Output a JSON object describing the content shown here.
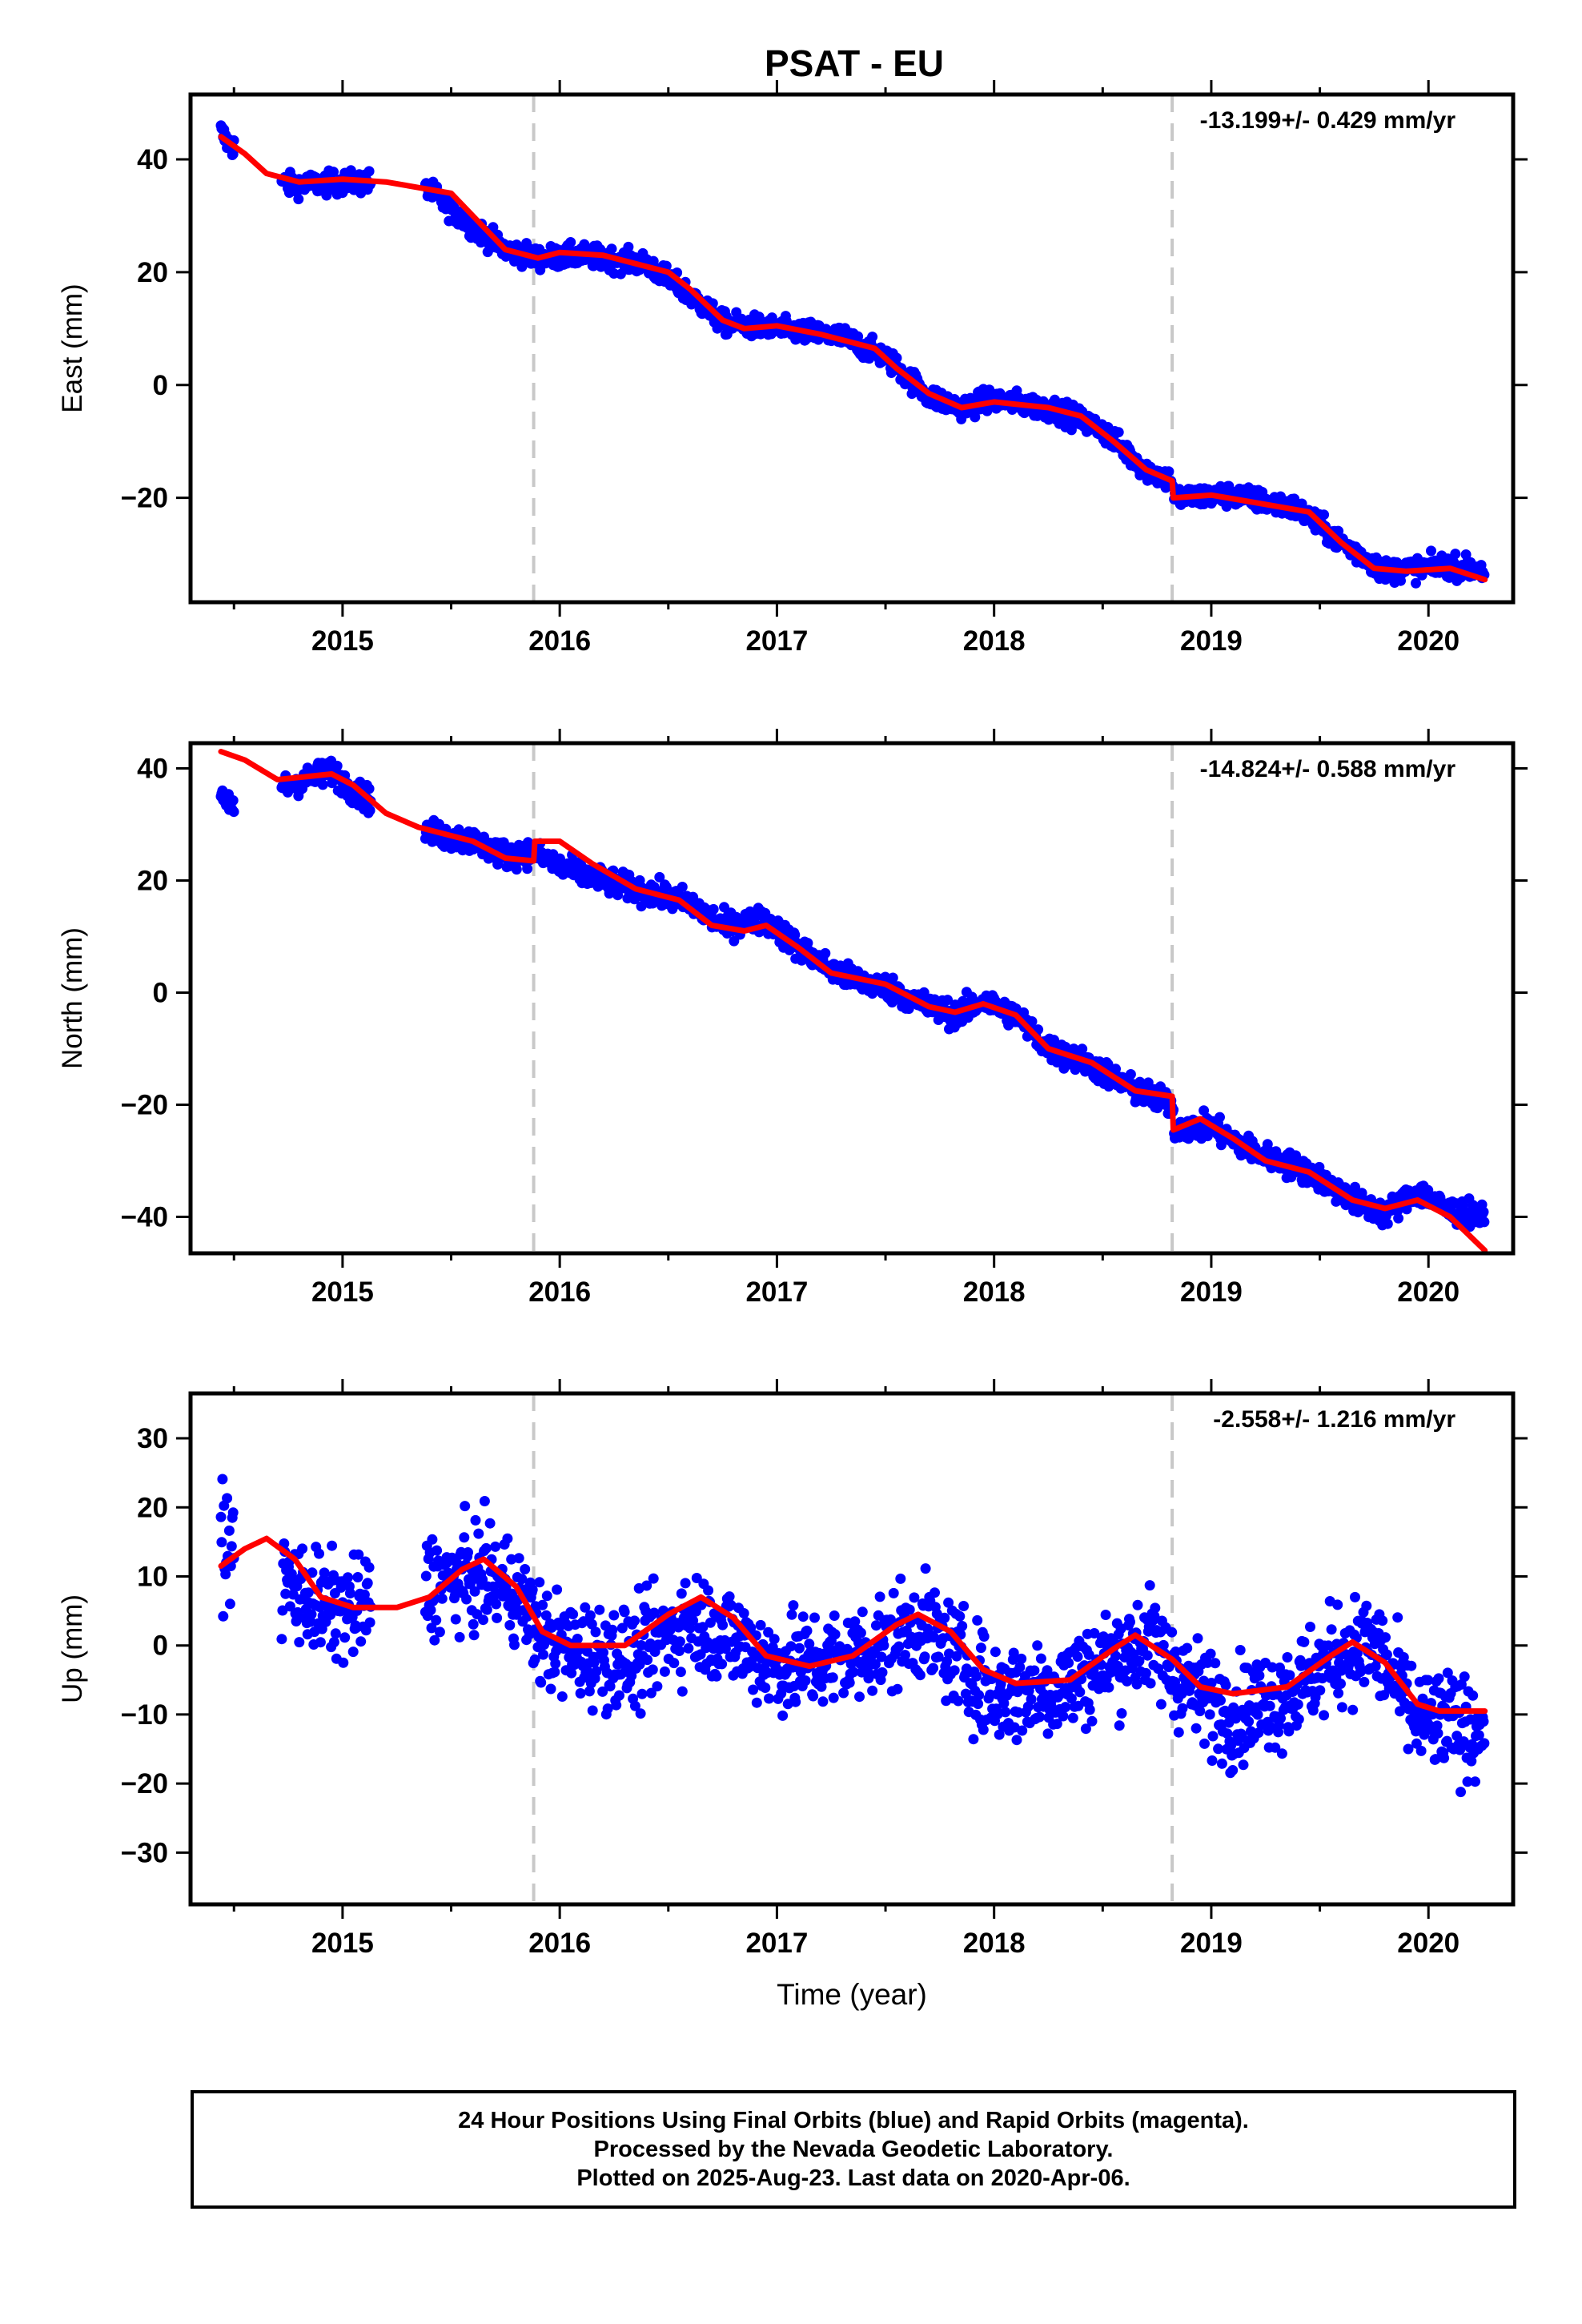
{
  "title": "PSAT - EU",
  "footer": {
    "line1": "24 Hour Positions Using Final Orbits (blue) and Rapid Orbits (magenta).",
    "line2": "Processed by the Nevada Geodetic Laboratory.",
    "line3": "Plotted on 2025-Aug-23. Last data on 2020-Apr-06."
  },
  "chart_data": [
    {
      "type": "scatter",
      "ylabel": "East (mm)",
      "xlabel": "",
      "rate_label": "-13.199+/- 0.429 mm/yr",
      "xlim": [
        2014.3,
        2020.39
      ],
      "ylim": [
        -38.5,
        51.5
      ],
      "xticks": [
        2015,
        2016,
        2017,
        2018,
        2019,
        2020
      ],
      "yticks": [
        -20,
        0,
        20,
        40
      ],
      "offset_lines_x": [
        2015.88,
        2018.82
      ],
      "scatter_color": "#0000ff",
      "model_color": "#ff0000",
      "model": [
        [
          2014.44,
          44
        ],
        [
          2014.55,
          41
        ],
        [
          2014.65,
          37.5
        ],
        [
          2014.8,
          36
        ],
        [
          2015.0,
          36.5
        ],
        [
          2015.2,
          36
        ],
        [
          2015.5,
          34
        ],
        [
          2015.6,
          30
        ],
        [
          2015.75,
          24
        ],
        [
          2015.9,
          22.5
        ],
        [
          2016.0,
          23.5
        ],
        [
          2016.2,
          23
        ],
        [
          2016.5,
          20
        ],
        [
          2016.6,
          17
        ],
        [
          2016.75,
          11.5
        ],
        [
          2016.85,
          10
        ],
        [
          2017.0,
          10.5
        ],
        [
          2017.2,
          9
        ],
        [
          2017.45,
          6.5
        ],
        [
          2017.55,
          3
        ],
        [
          2017.7,
          -1.5
        ],
        [
          2017.85,
          -4
        ],
        [
          2018.0,
          -3
        ],
        [
          2018.25,
          -4
        ],
        [
          2018.4,
          -5.5
        ],
        [
          2018.55,
          -10
        ],
        [
          2018.7,
          -15
        ],
        [
          2018.82,
          -17
        ],
        [
          2018.825,
          -20
        ],
        [
          2019.0,
          -19.5
        ],
        [
          2019.3,
          -21.5
        ],
        [
          2019.45,
          -22.5
        ],
        [
          2019.6,
          -28
        ],
        [
          2019.75,
          -32.5
        ],
        [
          2019.9,
          -33
        ],
        [
          2020.1,
          -32.5
        ],
        [
          2020.26,
          -34.5
        ]
      ],
      "scatter_keys": [
        [
          2014.44,
          45
        ],
        [
          2014.47,
          43
        ],
        [
          2014.75,
          35.5
        ],
        [
          2015.12,
          36
        ],
        [
          2015.4,
          34.5
        ],
        [
          2015.6,
          28
        ],
        [
          2015.75,
          24
        ],
        [
          2015.9,
          22.5
        ],
        [
          2016.1,
          23
        ],
        [
          2016.4,
          21.5
        ],
        [
          2016.6,
          16
        ],
        [
          2016.75,
          11
        ],
        [
          2017.0,
          10
        ],
        [
          2017.3,
          8.5
        ],
        [
          2017.5,
          5
        ],
        [
          2017.7,
          -2
        ],
        [
          2017.85,
          -4
        ],
        [
          2018.0,
          -2.5
        ],
        [
          2018.3,
          -4.5
        ],
        [
          2018.5,
          -8
        ],
        [
          2018.7,
          -15
        ],
        [
          2018.82,
          -17
        ],
        [
          2018.83,
          -20
        ],
        [
          2019.1,
          -19.5
        ],
        [
          2019.4,
          -22
        ],
        [
          2019.6,
          -28
        ],
        [
          2019.8,
          -33
        ],
        [
          2020.1,
          -32
        ],
        [
          2020.26,
          -33
        ]
      ],
      "scatter_gaps": [
        [
          2014.5,
          2014.72
        ],
        [
          2015.13,
          2015.38
        ]
      ],
      "scatter_noise": 1.4
    },
    {
      "type": "scatter",
      "ylabel": "North (mm)",
      "xlabel": "",
      "rate_label": "-14.824+/- 0.588 mm/yr",
      "xlim": [
        2014.3,
        2020.39
      ],
      "ylim": [
        -46.5,
        44.5
      ],
      "xticks": [
        2015,
        2016,
        2017,
        2018,
        2019,
        2020
      ],
      "yticks": [
        -40,
        -20,
        0,
        20,
        40
      ],
      "offset_lines_x": [
        2015.88,
        2018.82
      ],
      "scatter_color": "#0000ff",
      "model_color": "#ff0000",
      "model": [
        [
          2014.44,
          43
        ],
        [
          2014.55,
          41.5
        ],
        [
          2014.7,
          38
        ],
        [
          2014.95,
          39
        ],
        [
          2015.05,
          37
        ],
        [
          2015.2,
          32
        ],
        [
          2015.35,
          29.5
        ],
        [
          2015.6,
          27
        ],
        [
          2015.75,
          24
        ],
        [
          2015.88,
          23.5
        ],
        [
          2015.885,
          27
        ],
        [
          2016.0,
          27
        ],
        [
          2016.15,
          23
        ],
        [
          2016.35,
          18.5
        ],
        [
          2016.55,
          16.5
        ],
        [
          2016.7,
          12
        ],
        [
          2016.85,
          11
        ],
        [
          2016.95,
          12
        ],
        [
          2017.1,
          8
        ],
        [
          2017.25,
          3.5
        ],
        [
          2017.5,
          1.5
        ],
        [
          2017.7,
          -2.5
        ],
        [
          2017.82,
          -3.5
        ],
        [
          2017.95,
          -2
        ],
        [
          2018.1,
          -4
        ],
        [
          2018.25,
          -10
        ],
        [
          2018.45,
          -12.5
        ],
        [
          2018.65,
          -17.5
        ],
        [
          2018.82,
          -18.5
        ],
        [
          2018.825,
          -24.5
        ],
        [
          2018.95,
          -22.5
        ],
        [
          2019.1,
          -26
        ],
        [
          2019.25,
          -30
        ],
        [
          2019.45,
          -32
        ],
        [
          2019.65,
          -37
        ],
        [
          2019.8,
          -38.5
        ],
        [
          2019.95,
          -37
        ],
        [
          2020.1,
          -40
        ],
        [
          2020.26,
          -46
        ]
      ],
      "scatter_keys": [
        [
          2014.44,
          35
        ],
        [
          2014.47,
          33
        ],
        [
          2014.75,
          37
        ],
        [
          2014.95,
          39.5
        ],
        [
          2015.05,
          36
        ],
        [
          2015.4,
          28.5
        ],
        [
          2015.6,
          27
        ],
        [
          2015.75,
          24.5
        ],
        [
          2015.88,
          25
        ],
        [
          2016.0,
          22.5
        ],
        [
          2016.2,
          20
        ],
        [
          2016.4,
          18
        ],
        [
          2016.6,
          16
        ],
        [
          2016.75,
          12
        ],
        [
          2016.95,
          13
        ],
        [
          2017.1,
          8
        ],
        [
          2017.3,
          3
        ],
        [
          2017.5,
          1
        ],
        [
          2017.7,
          -2.5
        ],
        [
          2017.82,
          -4
        ],
        [
          2017.95,
          -1.5
        ],
        [
          2018.1,
          -4
        ],
        [
          2018.25,
          -10
        ],
        [
          2018.45,
          -13
        ],
        [
          2018.65,
          -17.5
        ],
        [
          2018.82,
          -20
        ],
        [
          2018.83,
          -24
        ],
        [
          2019.0,
          -24
        ],
        [
          2019.2,
          -28.5
        ],
        [
          2019.45,
          -32
        ],
        [
          2019.65,
          -37
        ],
        [
          2019.8,
          -39.5
        ],
        [
          2019.95,
          -35.5
        ],
        [
          2020.1,
          -39
        ],
        [
          2020.26,
          -40
        ]
      ],
      "scatter_gaps": [
        [
          2014.5,
          2014.72
        ],
        [
          2015.13,
          2015.38
        ]
      ],
      "scatter_noise": 1.6
    },
    {
      "type": "scatter",
      "ylabel": "Up (mm)",
      "xlabel": "Time (year)",
      "rate_label": "-2.558+/- 1.216 mm/yr",
      "xlim": [
        2014.3,
        2020.39
      ],
      "ylim": [
        -37.5,
        36.5
      ],
      "xticks": [
        2015,
        2016,
        2017,
        2018,
        2019,
        2020
      ],
      "yticks": [
        -30,
        -20,
        -10,
        0,
        10,
        20,
        30
      ],
      "offset_lines_x": [
        2015.88,
        2018.82
      ],
      "scatter_color": "#0000ff",
      "model_color": "#ff0000",
      "model": [
        [
          2014.44,
          11.5
        ],
        [
          2014.55,
          14
        ],
        [
          2014.65,
          15.5
        ],
        [
          2014.78,
          12.5
        ],
        [
          2014.9,
          7
        ],
        [
          2015.05,
          5.5
        ],
        [
          2015.25,
          5.5
        ],
        [
          2015.4,
          7
        ],
        [
          2015.55,
          11
        ],
        [
          2015.65,
          12.5
        ],
        [
          2015.8,
          8.5
        ],
        [
          2015.92,
          2
        ],
        [
          2016.05,
          0
        ],
        [
          2016.3,
          0
        ],
        [
          2016.5,
          4.5
        ],
        [
          2016.65,
          7
        ],
        [
          2016.8,
          4
        ],
        [
          2016.95,
          -1.5
        ],
        [
          2017.15,
          -3
        ],
        [
          2017.35,
          -1.5
        ],
        [
          2017.55,
          3
        ],
        [
          2017.65,
          4.5
        ],
        [
          2017.8,
          2
        ],
        [
          2017.95,
          -3.5
        ],
        [
          2018.1,
          -5.5
        ],
        [
          2018.35,
          -5
        ],
        [
          2018.55,
          -0.5
        ],
        [
          2018.65,
          1.5
        ],
        [
          2018.82,
          -2
        ],
        [
          2018.95,
          -6
        ],
        [
          2019.1,
          -7
        ],
        [
          2019.35,
          -6
        ],
        [
          2019.55,
          -1.5
        ],
        [
          2019.65,
          0.5
        ],
        [
          2019.8,
          -2.5
        ],
        [
          2019.95,
          -8.5
        ],
        [
          2020.05,
          -9.5
        ],
        [
          2020.26,
          -9.5
        ]
      ],
      "scatter_keys": [
        [
          2014.44,
          16
        ],
        [
          2014.47,
          14
        ],
        [
          2014.75,
          9
        ],
        [
          2014.9,
          5.5
        ],
        [
          2015.05,
          5
        ],
        [
          2015.4,
          9
        ],
        [
          2015.65,
          10
        ],
        [
          2015.8,
          8
        ],
        [
          2015.92,
          1
        ],
        [
          2016.1,
          -1
        ],
        [
          2016.35,
          -2
        ],
        [
          2016.6,
          4
        ],
        [
          2016.8,
          1
        ],
        [
          2017.0,
          -3
        ],
        [
          2017.3,
          -2
        ],
        [
          2017.55,
          1
        ],
        [
          2017.65,
          3
        ],
        [
          2017.8,
          -1
        ],
        [
          2018.0,
          -7
        ],
        [
          2018.3,
          -6
        ],
        [
          2018.55,
          -2
        ],
        [
          2018.7,
          1
        ],
        [
          2018.9,
          -6
        ],
        [
          2019.1,
          -10
        ],
        [
          2019.4,
          -6
        ],
        [
          2019.6,
          -1
        ],
        [
          2019.75,
          0
        ],
        [
          2019.95,
          -11
        ],
        [
          2020.26,
          -12
        ]
      ],
      "scatter_gaps": [
        [
          2014.5,
          2014.72
        ],
        [
          2015.13,
          2015.38
        ]
      ],
      "scatter_noise": 5.2
    }
  ]
}
